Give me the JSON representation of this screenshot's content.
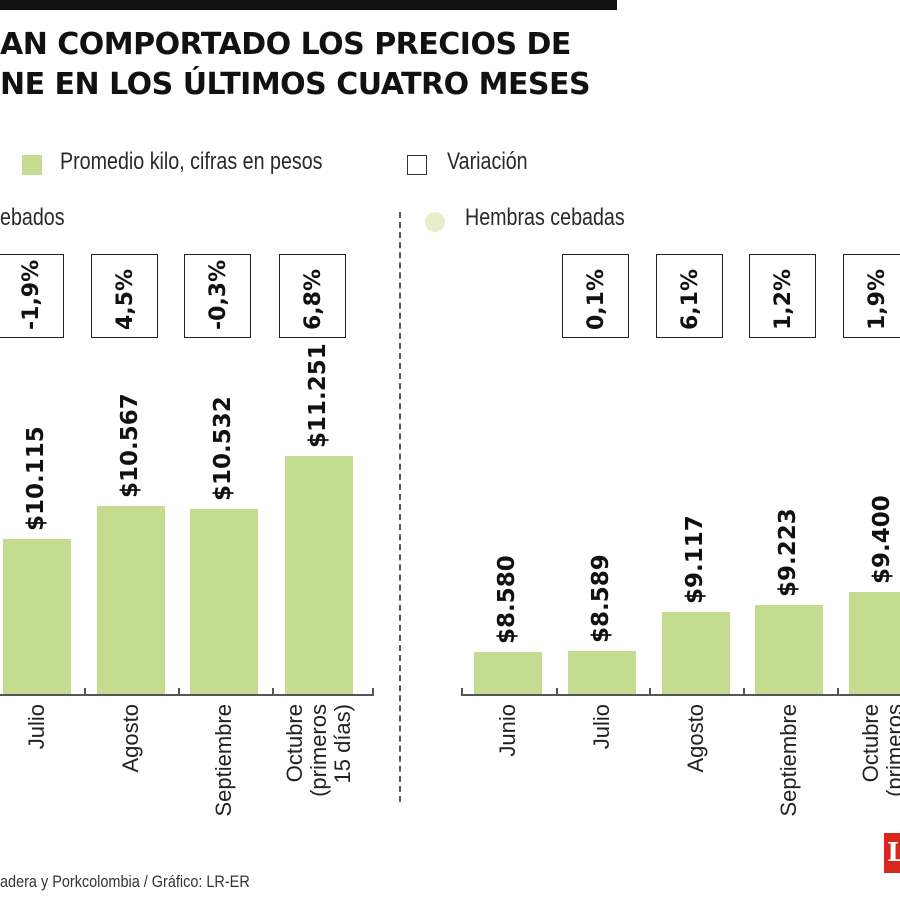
{
  "header": {
    "title_line1": "AN COMPORTADO LOS PRECIOS DE",
    "title_line2": "NE EN LOS ÚLTIMOS CUATRO MESES"
  },
  "legend": {
    "avg_label": "Promedio kilo, cifras en pesos",
    "var_label": "Variación",
    "bar_color": "#c3dc8f"
  },
  "chart_data": [
    {
      "type": "bar",
      "series_name": "ebados",
      "categories": [
        "Julio",
        "Agosto",
        "Septiembre",
        "Octubre (primeros 15 días)"
      ],
      "values": [
        10115,
        10567,
        10532,
        11251
      ],
      "value_labels": [
        "$10.115",
        "$10.567",
        "$10.532",
        "$11.251"
      ],
      "variation_labels": [
        "-1,9%",
        "4,5%",
        "-0,3%",
        "6,8%"
      ]
    },
    {
      "type": "bar",
      "series_name": "Hembras cebadas",
      "categories": [
        "Junio",
        "Julio",
        "Agosto",
        "Septiembre",
        "Octubre (primeros"
      ],
      "values": [
        8580,
        8589,
        9117,
        9223,
        9400
      ],
      "value_labels": [
        "$8.580",
        "$8.589",
        "$9.117",
        "$9.223",
        "$9.400"
      ],
      "variation_labels": [
        "0,1%",
        "6,1%",
        "1,2%",
        "1,9%"
      ]
    }
  ],
  "footer": {
    "source": "adera y Porkcolombia / Gráfico: LR-ER",
    "logo": "L"
  }
}
